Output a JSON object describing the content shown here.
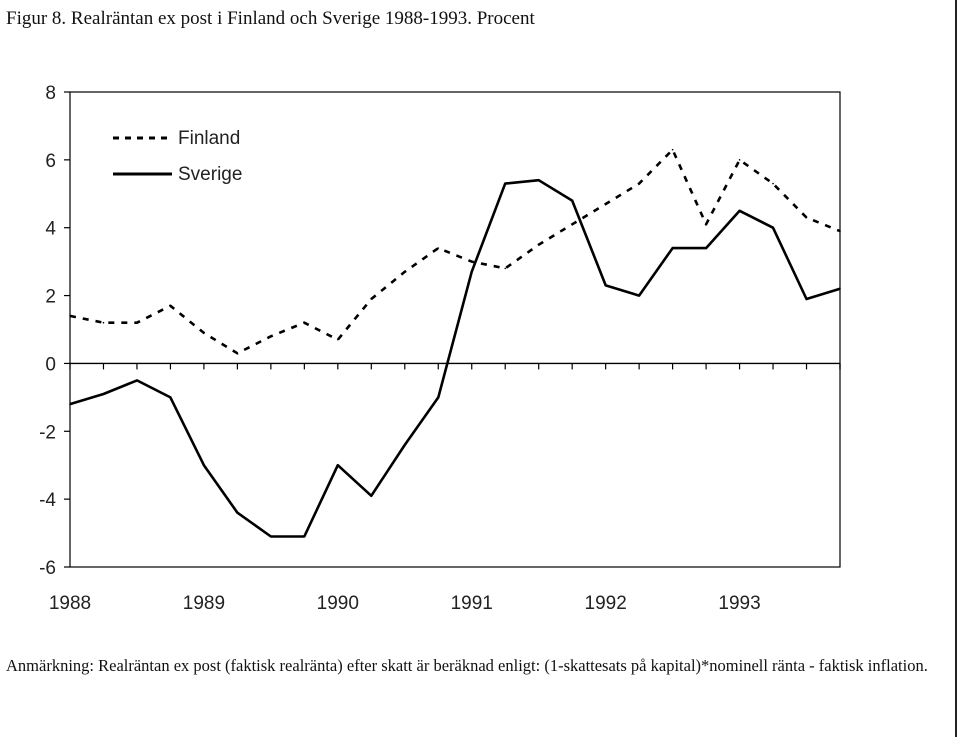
{
  "title": "Figur 8. Realräntan ex post i Finland och Sverige 1988-1993. Procent",
  "note": "Anmärkning: Realräntan ex post (faktisk realränta) efter skatt är beräknad enligt: (1-skattesats på kapital)*nominell ränta - faktisk inflation.",
  "chart_data": {
    "type": "line",
    "x": [
      1988.0,
      1988.25,
      1988.5,
      1988.75,
      1989.0,
      1989.25,
      1989.5,
      1989.75,
      1990.0,
      1990.25,
      1990.5,
      1990.75,
      1991.0,
      1991.25,
      1991.5,
      1991.75,
      1992.0,
      1992.25,
      1992.5,
      1992.75,
      1993.0,
      1993.25,
      1993.5,
      1993.75
    ],
    "xticks": [
      "1988",
      "1989",
      "1990",
      "1991",
      "1992",
      "1993"
    ],
    "yticks": [
      "8",
      "6",
      "4",
      "2",
      "0",
      "-2",
      "-4",
      "-6"
    ],
    "ylim": [
      -6,
      8
    ],
    "xlim": [
      1988,
      1993.75
    ],
    "legend_position": "top-left",
    "series": [
      {
        "name": "Finland",
        "style": "dashed",
        "color": "#000000",
        "values": [
          1.4,
          1.2,
          1.2,
          1.7,
          0.9,
          0.3,
          0.8,
          1.2,
          0.7,
          1.9,
          2.7,
          3.4,
          3.0,
          2.8,
          3.5,
          4.1,
          4.7,
          5.3,
          6.3,
          4.1,
          6.0,
          5.3,
          4.3,
          3.9
        ]
      },
      {
        "name": "Sverige",
        "style": "solid",
        "color": "#000000",
        "values": [
          -1.2,
          -0.9,
          -0.5,
          -1.0,
          -3.0,
          -4.4,
          -5.1,
          -5.1,
          -3.0,
          -3.9,
          -2.4,
          -1.0,
          2.7,
          5.3,
          5.4,
          4.8,
          2.3,
          2.0,
          3.4,
          3.4,
          4.5,
          4.0,
          1.9,
          2.2
        ]
      }
    ]
  }
}
